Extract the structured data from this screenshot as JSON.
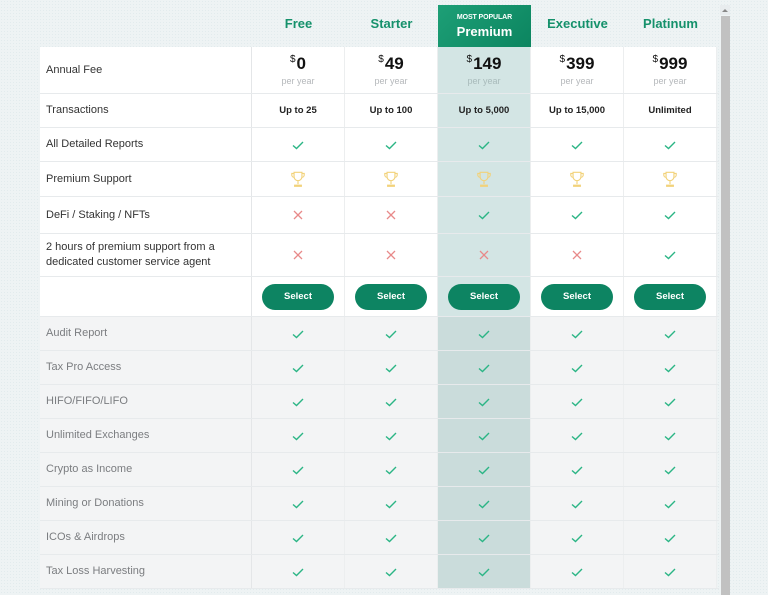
{
  "colors": {
    "accent": "#15916b",
    "button": "#0d8462",
    "check": "#2bb585",
    "cross": "#e88a8a",
    "trophy": "#f2d27a",
    "highlight": "#d3e5e4"
  },
  "plans": [
    {
      "name": "Free",
      "tag": "",
      "currency": "$",
      "price": "0",
      "period": "per year",
      "transactions": "Up to 25",
      "select_label": "Select"
    },
    {
      "name": "Starter",
      "tag": "",
      "currency": "$",
      "price": "49",
      "period": "per year",
      "transactions": "Up to 100",
      "select_label": "Select"
    },
    {
      "name": "Premium",
      "tag": "MOST POPULAR",
      "currency": "$",
      "price": "149",
      "period": "per year",
      "transactions": "Up to 5,000",
      "select_label": "Select"
    },
    {
      "name": "Executive",
      "tag": "",
      "currency": "$",
      "price": "399",
      "period": "per year",
      "transactions": "Up to 15,000",
      "select_label": "Select"
    },
    {
      "name": "Platinum",
      "tag": "",
      "currency": "$",
      "price": "999",
      "period": "per year",
      "transactions": "Unlimited",
      "select_label": "Select"
    }
  ],
  "top_rows": {
    "annual_fee": "Annual Fee",
    "transactions": "Transactions",
    "features": [
      {
        "label": "All Detailed Reports",
        "values": [
          "check",
          "check",
          "check",
          "check",
          "check"
        ]
      },
      {
        "label": "Premium Support",
        "values": [
          "trophy",
          "trophy",
          "trophy",
          "trophy",
          "trophy"
        ]
      },
      {
        "label": "DeFi / Staking / NFTs",
        "values": [
          "cross",
          "cross",
          "check",
          "check",
          "check"
        ]
      },
      {
        "label": "2 hours of premium support from a dedicated customer service agent",
        "values": [
          "cross",
          "cross",
          "cross",
          "cross",
          "check"
        ]
      }
    ]
  },
  "lower_rows": [
    {
      "label": "Audit Report",
      "values": [
        "check",
        "check",
        "check",
        "check",
        "check"
      ]
    },
    {
      "label": "Tax Pro Access",
      "values": [
        "check",
        "check",
        "check",
        "check",
        "check"
      ]
    },
    {
      "label": "HIFO/FIFO/LIFO",
      "values": [
        "check",
        "check",
        "check",
        "check",
        "check"
      ]
    },
    {
      "label": "Unlimited Exchanges",
      "values": [
        "check",
        "check",
        "check",
        "check",
        "check"
      ]
    },
    {
      "label": "Crypto as Income",
      "values": [
        "check",
        "check",
        "check",
        "check",
        "check"
      ]
    },
    {
      "label": "Mining or Donations",
      "values": [
        "check",
        "check",
        "check",
        "check",
        "check"
      ]
    },
    {
      "label": "ICOs & Airdrops",
      "values": [
        "check",
        "check",
        "check",
        "check",
        "check"
      ]
    },
    {
      "label": "Tax Loss Harvesting",
      "values": [
        "check",
        "check",
        "check",
        "check",
        "check"
      ]
    }
  ]
}
